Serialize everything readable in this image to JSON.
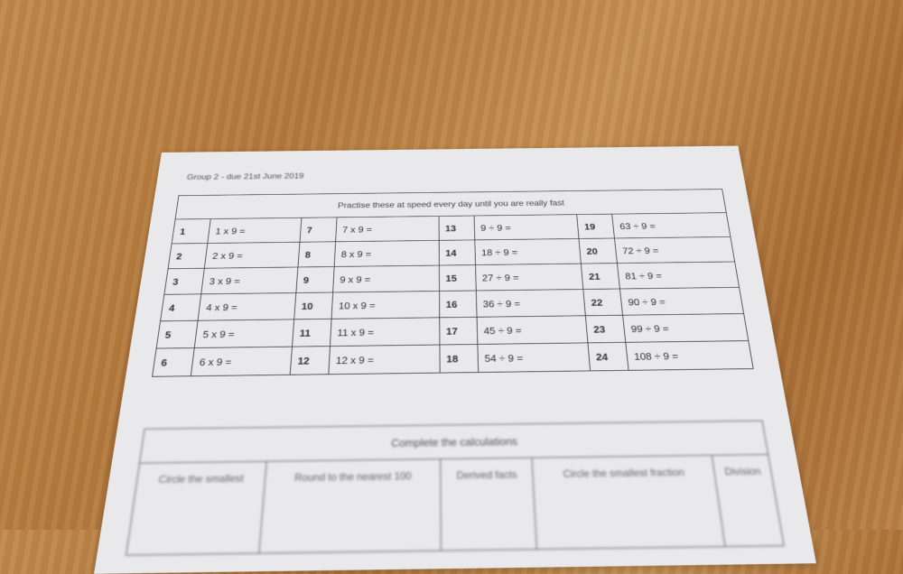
{
  "worksheet": {
    "group_line": "Group 2 - due 21st June 2019",
    "table1_title": "Practise these at speed every day until you are really fast",
    "rows": [
      [
        {
          "n": "1",
          "q": "1 x 9 ="
        },
        {
          "n": "7",
          "q": "7 x 9 ="
        },
        {
          "n": "13",
          "q": "9 ÷ 9 ="
        },
        {
          "n": "19",
          "q": "63 ÷ 9 ="
        }
      ],
      [
        {
          "n": "2",
          "q": "2 x 9 ="
        },
        {
          "n": "8",
          "q": "8 x 9 ="
        },
        {
          "n": "14",
          "q": "18 ÷ 9 ="
        },
        {
          "n": "20",
          "q": "72 ÷ 9 ="
        }
      ],
      [
        {
          "n": "3",
          "q": "3 x 9 ="
        },
        {
          "n": "9",
          "q": "9 x 9 ="
        },
        {
          "n": "15",
          "q": "27 ÷ 9 ="
        },
        {
          "n": "21",
          "q": "81 ÷ 9 ="
        }
      ],
      [
        {
          "n": "4",
          "q": "4 x 9 ="
        },
        {
          "n": "10",
          "q": "10 x 9 ="
        },
        {
          "n": "16",
          "q": "36 ÷ 9 ="
        },
        {
          "n": "22",
          "q": "90 ÷ 9 ="
        }
      ],
      [
        {
          "n": "5",
          "q": "5 x 9 ="
        },
        {
          "n": "11",
          "q": "11 x 9 ="
        },
        {
          "n": "17",
          "q": "45 ÷ 9 ="
        },
        {
          "n": "23",
          "q": "99 ÷ 9 ="
        }
      ],
      [
        {
          "n": "6",
          "q": "6 x 9 ="
        },
        {
          "n": "12",
          "q": "12 x 9 ="
        },
        {
          "n": "18",
          "q": "54 ÷ 9 ="
        },
        {
          "n": "24",
          "q": "108 ÷ 9 ="
        }
      ]
    ],
    "table2_title": "Complete the calculations",
    "table2_headers": [
      "Circle the smallest",
      "Round to the nearest 100",
      "Derived facts",
      "Circle the smallest fraction",
      "Division"
    ]
  }
}
